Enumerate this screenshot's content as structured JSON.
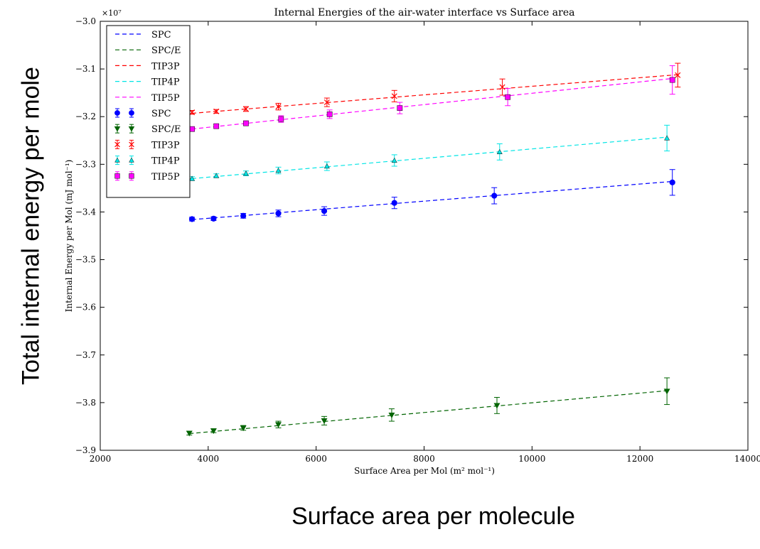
{
  "slide": {
    "y_caption": "Total internal energy per mole",
    "x_caption": "Surface area per molecule"
  },
  "chart_data": {
    "type": "scatter",
    "title": "Internal Energies of the air-water interface vs Surface area",
    "xlabel": "Surface Area per Mol (m² mol⁻¹)",
    "ylabel": "Internal Energy per Mol (mJ mol⁻¹)",
    "y_scale_label": "×10⁷",
    "xlim": [
      2000,
      14000
    ],
    "ylim": [
      -3.9,
      -3.0
    ],
    "x_ticks": [
      2000,
      4000,
      6000,
      8000,
      10000,
      12000,
      14000
    ],
    "y_ticks": [
      -3.0,
      -3.1,
      -3.2,
      -3.3,
      -3.4,
      -3.5,
      -3.6,
      -3.7,
      -3.8,
      -3.9
    ],
    "x_tick_labels": [
      "2000",
      "4000",
      "6000",
      "8000",
      "10000",
      "12000",
      "14000"
    ],
    "y_tick_labels": [
      "−3.0",
      "−3.1",
      "−3.2",
      "−3.3",
      "−3.4",
      "−3.5",
      "−3.6",
      "−3.7",
      "−3.8",
      "−3.9"
    ],
    "grid": false,
    "legend_position": "top-left",
    "series": [
      {
        "name": "SPC",
        "color": "#0000ff",
        "marker": "circle",
        "x": [
          3700,
          4100,
          4650,
          5300,
          6150,
          7450,
          9300,
          12600
        ],
        "y": [
          -3.415,
          -3.414,
          -3.408,
          -3.403,
          -3.398,
          -3.381,
          -3.366,
          -3.338
        ],
        "err": [
          0.004,
          0.004,
          0.005,
          0.007,
          0.009,
          0.012,
          0.017,
          0.027
        ],
        "fit": [
          [
            3700,
            -3.416
          ],
          [
            12600,
            -3.336
          ]
        ]
      },
      {
        "name": "SPC/E",
        "color": "#006400",
        "marker": "triangle-down",
        "x": [
          3650,
          4100,
          4650,
          5300,
          6150,
          7400,
          9350,
          12500
        ],
        "y": [
          -3.864,
          -3.859,
          -3.853,
          -3.846,
          -3.838,
          -3.826,
          -3.806,
          -3.776
        ],
        "err": [
          0.004,
          0.004,
          0.005,
          0.007,
          0.009,
          0.013,
          0.017,
          0.028
        ],
        "fit": [
          [
            3650,
            -3.865
          ],
          [
            12500,
            -3.775
          ]
        ]
      },
      {
        "name": "TIP3P",
        "color": "#ff0000",
        "marker": "x",
        "x": [
          3700,
          4150,
          4700,
          5300,
          6200,
          7450,
          9450,
          12700
        ],
        "y": [
          -3.191,
          -3.189,
          -3.184,
          -3.179,
          -3.17,
          -3.157,
          -3.138,
          -3.113
        ],
        "err": [
          0.004,
          0.004,
          0.005,
          0.007,
          0.009,
          0.012,
          0.017,
          0.025
        ],
        "fit": [
          [
            3700,
            -3.193
          ],
          [
            12700,
            -3.112
          ]
        ]
      },
      {
        "name": "TIP4P",
        "color": "#00e5e5",
        "marker": "triangle-up",
        "x": [
          3700,
          4150,
          4700,
          5300,
          6200,
          7450,
          9400,
          12500
        ],
        "y": [
          -3.33,
          -3.324,
          -3.319,
          -3.313,
          -3.304,
          -3.292,
          -3.274,
          -3.245
        ],
        "err": [
          0.004,
          0.004,
          0.005,
          0.007,
          0.009,
          0.012,
          0.017,
          0.027
        ],
        "fit": [
          [
            3700,
            -3.33
          ],
          [
            12500,
            -3.243
          ]
        ]
      },
      {
        "name": "TIP5P",
        "color": "#ff00ff",
        "marker": "square",
        "x": [
          3700,
          4150,
          4700,
          5350,
          6250,
          7550,
          9550,
          12600
        ],
        "y": [
          -3.226,
          -3.22,
          -3.214,
          -3.205,
          -3.195,
          -3.182,
          -3.159,
          -3.123
        ],
        "err": [
          0.004,
          0.004,
          0.005,
          0.007,
          0.009,
          0.012,
          0.018,
          0.03
        ],
        "fit": [
          [
            3700,
            -3.226
          ],
          [
            12600,
            -3.12
          ]
        ]
      }
    ]
  }
}
